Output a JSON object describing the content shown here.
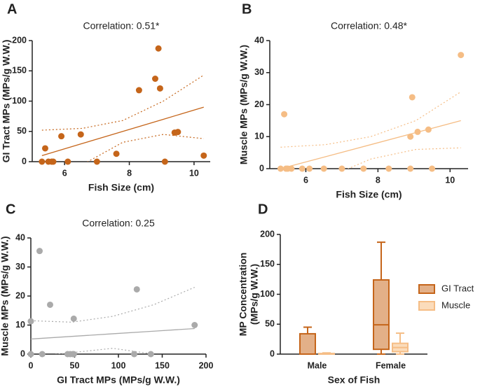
{
  "chart_data": [
    {
      "type": "scatter",
      "panel": "A",
      "title": "Correlation: 0.51*",
      "x_label": "Fish Size (cm)",
      "y_label": "GI Tract MPs (MPs/g W.W.)",
      "xlim": [
        5,
        10.5
      ],
      "xticks": [
        6,
        8,
        10
      ],
      "ylim": [
        0,
        200
      ],
      "yticks": [
        0,
        50,
        100,
        150,
        200
      ],
      "color": "#c5651a",
      "x": [
        5.3,
        5.4,
        5.5,
        5.6,
        5.65,
        5.9,
        6.1,
        6.5,
        7.0,
        7.6,
        8.3,
        8.8,
        8.9,
        8.95,
        9.1,
        9.4,
        9.5,
        10.3
      ],
      "values": [
        0,
        22,
        0,
        0,
        0,
        42,
        0,
        45,
        0,
        13,
        118,
        137,
        187,
        121,
        0,
        48,
        49,
        10
      ],
      "fit": {
        "x": [
          5.3,
          6.55,
          7.8,
          9.05,
          10.3
        ],
        "y": [
          10,
          30,
          50,
          70,
          90
        ],
        "upper": [
          52,
          55,
          68,
          100,
          143
        ],
        "lower": [
          -32,
          -5,
          32,
          45,
          38
        ]
      }
    },
    {
      "type": "scatter",
      "panel": "B",
      "title": "Correlation: 0.48*",
      "x_label": "Fish Size (cm)",
      "y_label": "Muscle MPs (MPs/g W.W.)",
      "xlim": [
        5,
        10.5
      ],
      "xticks": [
        6,
        8,
        10
      ],
      "ylim": [
        0,
        40
      ],
      "yticks": [
        0,
        10,
        20,
        30,
        40
      ],
      "color": "#f5bd85",
      "x": [
        5.3,
        5.4,
        5.45,
        5.5,
        5.6,
        5.9,
        6.1,
        6.5,
        7.0,
        7.6,
        8.3,
        8.9,
        8.9,
        8.95,
        9.1,
        9.4,
        9.5,
        10.3
      ],
      "values": [
        0,
        17,
        0,
        0,
        0,
        0,
        0,
        0,
        0,
        0,
        0,
        0,
        10,
        22.3,
        11.5,
        12.2,
        0,
        35.5
      ],
      "fit": {
        "x": [
          5.3,
          6.55,
          7.8,
          9.05,
          10.3
        ],
        "y": [
          0,
          3.75,
          7.5,
          11.25,
          15
        ],
        "upper": [
          6.7,
          7.5,
          10,
          15,
          24
        ],
        "lower": [
          -6,
          -3,
          3,
          6,
          6.5
        ]
      }
    },
    {
      "type": "scatter",
      "panel": "C",
      "title": "Correlation: 0.25",
      "x_label": "GI Tract MPs (MPs/g W.W.)",
      "y_label": "Muscle MPs (MPs/g W.W.)",
      "xlim": [
        0,
        200
      ],
      "xticks": [
        0,
        50,
        100,
        150,
        200
      ],
      "ylim": [
        0,
        40
      ],
      "yticks": [
        0,
        10,
        20,
        30,
        40
      ],
      "color": "#aaaaaa",
      "x": [
        0,
        0,
        10,
        13,
        22,
        42,
        45,
        48,
        49,
        49,
        118,
        121,
        137,
        187
      ],
      "values": [
        11.3,
        0,
        35.5,
        0,
        17,
        0,
        0,
        0,
        12.2,
        0,
        0,
        22.3,
        0,
        10
      ],
      "fit": {
        "x": [
          0,
          46.75,
          93.5,
          140.25,
          187
        ],
        "y": [
          5.2,
          6.1,
          7,
          7.9,
          8.8
        ],
        "upper": [
          11.5,
          11,
          13,
          17,
          23
        ],
        "lower": [
          -1,
          0.5,
          2,
          0,
          -5
        ]
      }
    },
    {
      "type": "box",
      "panel": "D",
      "x_label": "Sex of  Fish",
      "y_label": [
        "MP Concentration",
        "(MPs/g W.W.)"
      ],
      "categories": [
        "Male",
        "Female"
      ],
      "ylim": [
        0,
        200
      ],
      "yticks": [
        0,
        50,
        100,
        150,
        200
      ],
      "series": [
        {
          "name": "GI Tract",
          "color": "#c5651a",
          "fill": "#e3b088",
          "min": [
            0,
            0
          ],
          "q1": [
            0,
            8
          ],
          "median": [
            0,
            49
          ],
          "q3": [
            34,
            124
          ],
          "max": [
            45,
            187
          ]
        },
        {
          "name": "Muscle",
          "color": "#f5bd85",
          "fill": "#fbdcbb",
          "min": [
            0,
            0
          ],
          "q1": [
            0,
            4
          ],
          "median": [
            0,
            11
          ],
          "q3": [
            1,
            18
          ],
          "max": [
            2,
            35
          ]
        }
      ]
    }
  ]
}
